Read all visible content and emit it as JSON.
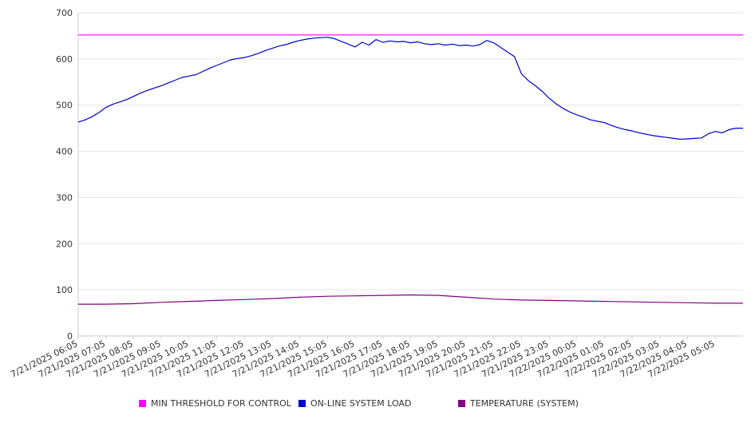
{
  "chart_data": {
    "type": "line",
    "title": "",
    "xlabel": "",
    "ylabel": "",
    "ylim": [
      0,
      700
    ],
    "y_ticks": [
      "0",
      "100",
      "200",
      "300",
      "400",
      "500",
      "600",
      "700"
    ],
    "x_ticks": [
      "7/21/2025 06:05",
      "7/21/2025 07:05",
      "7/21/2025 08:05",
      "7/21/2025 09:05",
      "7/21/2025 10:05",
      "7/21/2025 11:05",
      "7/21/2025 12:05",
      "7/21/2025 13:05",
      "7/21/2025 14:05",
      "7/21/2025 15:05",
      "7/21/2025 16:05",
      "7/21/2025 17:05",
      "7/21/2025 18:05",
      "7/21/2025 19:05",
      "7/21/2025 20:05",
      "7/21/2025 21:05",
      "7/21/2025 22:05",
      "7/21/2025 23:05",
      "7/22/2025 00:05",
      "7/22/2025 01:05",
      "7/22/2025 02:05",
      "7/22/2025 03:05",
      "7/22/2025 04:05",
      "7/22/2025 05:05"
    ],
    "x_range_hours": [
      0,
      24
    ],
    "grid": "horizontal",
    "legend_position": "bottom",
    "series": [
      {
        "name": "MIN THRESHOLD FOR CONTROL",
        "color": "#ff00ff",
        "points": [
          [
            0,
            652
          ],
          [
            24,
            652
          ]
        ]
      },
      {
        "name": "ON-LINE SYSTEM LOAD",
        "color": "#0000cc",
        "points": [
          [
            0,
            463
          ],
          [
            0.25,
            468
          ],
          [
            0.5,
            475
          ],
          [
            0.75,
            484
          ],
          [
            1,
            495
          ],
          [
            1.25,
            502
          ],
          [
            1.5,
            507
          ],
          [
            1.75,
            512
          ],
          [
            2,
            519
          ],
          [
            2.25,
            526
          ],
          [
            2.5,
            532
          ],
          [
            2.75,
            537
          ],
          [
            3,
            542
          ],
          [
            3.25,
            548
          ],
          [
            3.5,
            554
          ],
          [
            3.75,
            560
          ],
          [
            4,
            563
          ],
          [
            4.25,
            566
          ],
          [
            4.5,
            573
          ],
          [
            4.75,
            580
          ],
          [
            5,
            586
          ],
          [
            5.25,
            592
          ],
          [
            5.5,
            598
          ],
          [
            5.75,
            601
          ],
          [
            6,
            603
          ],
          [
            6.25,
            607
          ],
          [
            6.5,
            612
          ],
          [
            6.75,
            618
          ],
          [
            7,
            623
          ],
          [
            7.25,
            628
          ],
          [
            7.5,
            631
          ],
          [
            7.75,
            636
          ],
          [
            8,
            640
          ],
          [
            8.25,
            643
          ],
          [
            8.5,
            645
          ],
          [
            8.75,
            646
          ],
          [
            9,
            647
          ],
          [
            9.25,
            644
          ],
          [
            9.5,
            638
          ],
          [
            9.75,
            632
          ],
          [
            10,
            626
          ],
          [
            10.25,
            636
          ],
          [
            10.5,
            630
          ],
          [
            10.75,
            642
          ],
          [
            11,
            636
          ],
          [
            11.25,
            639
          ],
          [
            11.5,
            637
          ],
          [
            11.75,
            638
          ],
          [
            12,
            635
          ],
          [
            12.25,
            637
          ],
          [
            12.5,
            633
          ],
          [
            12.75,
            631
          ],
          [
            13,
            633
          ],
          [
            13.25,
            630
          ],
          [
            13.5,
            632
          ],
          [
            13.75,
            629
          ],
          [
            14,
            630
          ],
          [
            14.25,
            628
          ],
          [
            14.5,
            631
          ],
          [
            14.75,
            640
          ],
          [
            15,
            635
          ],
          [
            15.25,
            625
          ],
          [
            15.5,
            615
          ],
          [
            15.75,
            605
          ],
          [
            16,
            568
          ],
          [
            16.25,
            553
          ],
          [
            16.5,
            542
          ],
          [
            16.75,
            530
          ],
          [
            17,
            515
          ],
          [
            17.25,
            503
          ],
          [
            17.5,
            493
          ],
          [
            17.75,
            485
          ],
          [
            18,
            479
          ],
          [
            18.25,
            474
          ],
          [
            18.5,
            468
          ],
          [
            18.75,
            465
          ],
          [
            19,
            462
          ],
          [
            19.25,
            456
          ],
          [
            19.5,
            451
          ],
          [
            19.75,
            447
          ],
          [
            20,
            444
          ],
          [
            20.25,
            440
          ],
          [
            20.5,
            437
          ],
          [
            20.75,
            434
          ],
          [
            21,
            432
          ],
          [
            21.25,
            430
          ],
          [
            21.5,
            428
          ],
          [
            21.75,
            426
          ],
          [
            22,
            427
          ],
          [
            22.25,
            428
          ],
          [
            22.5,
            429
          ],
          [
            22.75,
            438
          ],
          [
            23,
            443
          ],
          [
            23.25,
            440
          ],
          [
            23.5,
            447
          ],
          [
            23.75,
            450
          ],
          [
            24,
            450
          ]
        ]
      },
      {
        "name": "TEMPERATURE (SYSTEM)",
        "color": "#800080",
        "points": [
          [
            0,
            69
          ],
          [
            1,
            69
          ],
          [
            2,
            70
          ],
          [
            3,
            73
          ],
          [
            4,
            75
          ],
          [
            5,
            77
          ],
          [
            6,
            79
          ],
          [
            7,
            81
          ],
          [
            8,
            84
          ],
          [
            9,
            86
          ],
          [
            10,
            87
          ],
          [
            11,
            88
          ],
          [
            12,
            89
          ],
          [
            13,
            88
          ],
          [
            14,
            84
          ],
          [
            15,
            80
          ],
          [
            16,
            78
          ],
          [
            17,
            77
          ],
          [
            18,
            76
          ],
          [
            19,
            75
          ],
          [
            20,
            74
          ],
          [
            21,
            73
          ],
          [
            22,
            72
          ],
          [
            23,
            71
          ],
          [
            24,
            71
          ]
        ]
      }
    ]
  }
}
